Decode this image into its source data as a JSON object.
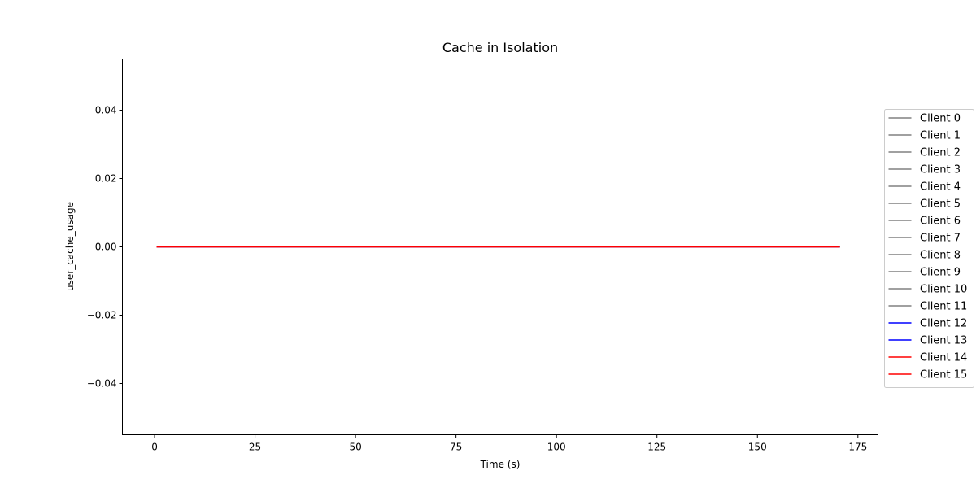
{
  "chart_data": {
    "type": "line",
    "title": "Cache in  Isolation",
    "xlabel": "Time (s)",
    "ylabel": "user_cache_usage",
    "xlim": [
      -8,
      180
    ],
    "ylim": [
      -0.055,
      0.055
    ],
    "x_ticks": [
      0,
      25,
      50,
      75,
      100,
      125,
      150,
      175
    ],
    "x_tick_labels": [
      "0",
      "25",
      "50",
      "75",
      "100",
      "125",
      "150",
      "175"
    ],
    "y_ticks": [
      -0.04,
      -0.02,
      0.0,
      0.02,
      0.04
    ],
    "y_tick_labels": [
      "−0.04",
      "−0.02",
      "0.00",
      "0.02",
      "0.04"
    ],
    "grid": false,
    "legend_position": "outside-right",
    "x": [
      0.5,
      170.5
    ],
    "series": [
      {
        "name": "Client 0",
        "color": "#808080",
        "values": [
          0,
          0
        ]
      },
      {
        "name": "Client 1",
        "color": "#808080",
        "values": [
          0,
          0
        ]
      },
      {
        "name": "Client 2",
        "color": "#808080",
        "values": [
          0,
          0
        ]
      },
      {
        "name": "Client 3",
        "color": "#808080",
        "values": [
          0,
          0
        ]
      },
      {
        "name": "Client 4",
        "color": "#808080",
        "values": [
          0,
          0
        ]
      },
      {
        "name": "Client 5",
        "color": "#808080",
        "values": [
          0,
          0
        ]
      },
      {
        "name": "Client 6",
        "color": "#808080",
        "values": [
          0,
          0
        ]
      },
      {
        "name": "Client 7",
        "color": "#808080",
        "values": [
          0,
          0
        ]
      },
      {
        "name": "Client 8",
        "color": "#808080",
        "values": [
          0,
          0
        ]
      },
      {
        "name": "Client 9",
        "color": "#808080",
        "values": [
          0,
          0
        ]
      },
      {
        "name": "Client 10",
        "color": "#808080",
        "values": [
          0,
          0
        ]
      },
      {
        "name": "Client 11",
        "color": "#808080",
        "values": [
          0,
          0
        ]
      },
      {
        "name": "Client 12",
        "color": "#0000ff",
        "values": [
          0,
          0
        ]
      },
      {
        "name": "Client 13",
        "color": "#0000ff",
        "values": [
          0,
          0
        ]
      },
      {
        "name": "Client 14",
        "color": "#ff0000",
        "values": [
          0,
          0
        ]
      },
      {
        "name": "Client 15",
        "color": "#ff0000",
        "values": [
          0,
          0
        ]
      }
    ]
  }
}
